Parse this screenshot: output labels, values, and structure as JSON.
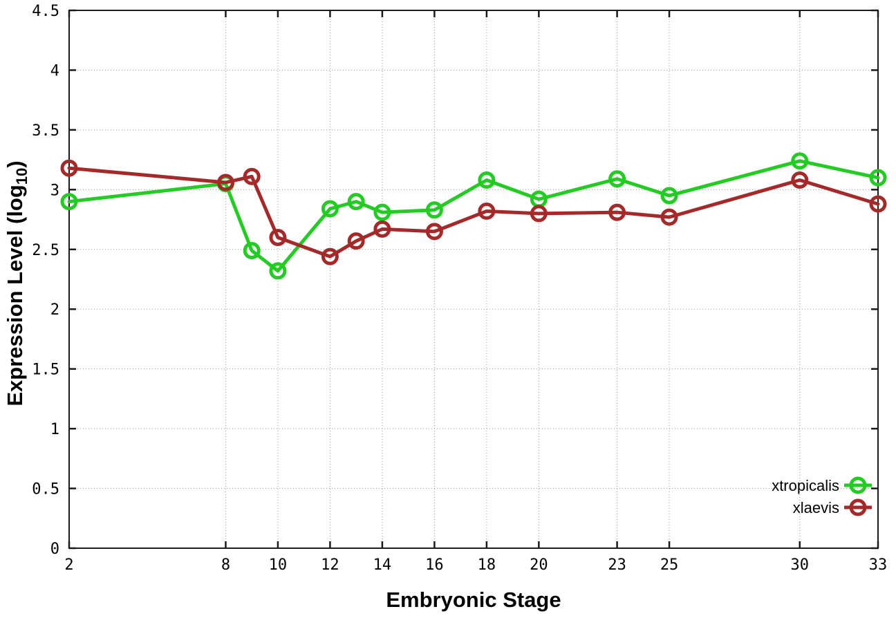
{
  "chart_data": {
    "type": "line",
    "title": "",
    "xlabel": "Embryonic Stage",
    "ylabel": {
      "main": "Expression Level (log",
      "sub": "10",
      "end": ")"
    },
    "xlim": [
      2,
      33
    ],
    "ylim": [
      0,
      4.5
    ],
    "xticks": [
      2,
      8,
      10,
      12,
      14,
      16,
      18,
      20,
      23,
      25,
      30,
      33
    ],
    "yticks": [
      0,
      0.5,
      1,
      1.5,
      2,
      2.5,
      3,
      3.5,
      4,
      4.5
    ],
    "grid": "dotted",
    "legend_position": "bottom-right-inside",
    "frame_color": "#1a1a1a",
    "grid_color": "#9a9a9a",
    "x": [
      2,
      8,
      9,
      10,
      12,
      13,
      14,
      16,
      18,
      20,
      23,
      25,
      30,
      33
    ],
    "series": [
      {
        "name": "xtropicalis",
        "color": "#22cc22",
        "marker": "open-circle",
        "values": [
          2.9,
          3.05,
          2.49,
          2.32,
          2.84,
          2.9,
          2.81,
          2.83,
          3.08,
          2.92,
          3.09,
          2.95,
          3.24,
          3.1
        ]
      },
      {
        "name": "xlaevis",
        "color": "#a62929",
        "marker": "open-circle",
        "values": [
          3.18,
          3.06,
          3.11,
          2.6,
          2.44,
          2.57,
          2.67,
          2.65,
          2.82,
          2.8,
          2.81,
          2.77,
          3.08,
          2.88
        ]
      }
    ]
  }
}
